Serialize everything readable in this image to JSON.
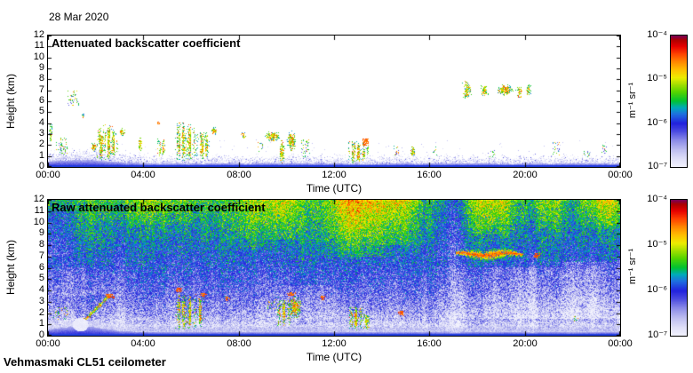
{
  "header": {
    "date": "28 Mar 2020"
  },
  "footer": {
    "station": "Vehmasmaki CL51 ceilometer"
  },
  "colormap": [
    [
      0.0,
      "#f2f2fd"
    ],
    [
      0.06,
      "#dedef8"
    ],
    [
      0.13,
      "#bcbcf0"
    ],
    [
      0.2,
      "#8c8ce8"
    ],
    [
      0.27,
      "#4a4ae0"
    ],
    [
      0.33,
      "#2222dd"
    ],
    [
      0.4,
      "#1e6fe0"
    ],
    [
      0.45,
      "#00aabb"
    ],
    [
      0.5,
      "#00c233"
    ],
    [
      0.57,
      "#55d400"
    ],
    [
      0.63,
      "#a8e000"
    ],
    [
      0.68,
      "#eded00"
    ],
    [
      0.74,
      "#ffc000"
    ],
    [
      0.8,
      "#ff8800"
    ],
    [
      0.86,
      "#ff4400"
    ],
    [
      0.92,
      "#e60000"
    ],
    [
      0.97,
      "#ad0000"
    ],
    [
      1.0,
      "#7a0055"
    ]
  ],
  "chart_data": [
    {
      "type": "heatmap",
      "title": "Attenuated backscatter coefficient",
      "xlabel": "Time (UTC)",
      "ylabel": "Height (km)",
      "x_ticks": [
        "00:00",
        "04:00",
        "08:00",
        "12:00",
        "16:00",
        "20:00",
        "00:00"
      ],
      "y_ticks": [
        "0",
        "1",
        "2",
        "3",
        "4",
        "5",
        "6",
        "7",
        "8",
        "9",
        "10",
        "11",
        "12"
      ],
      "x_range_hours": [
        0,
        24
      ],
      "ylim": [
        0,
        12
      ],
      "background": "#ffffff",
      "colorbar": {
        "label": "m⁻¹ sr⁻¹",
        "tick_labels": [
          "10⁻⁴",
          "10⁻⁵",
          "10⁻⁶",
          "10⁻⁷"
        ],
        "log10_range": [
          -7,
          -4
        ]
      },
      "surface_layer": {
        "base_km": 0.3,
        "bump_km": 0.35,
        "bump_t": 1.2,
        "bump_sigma": 1.8,
        "log_value": -6.05
      },
      "speckle": {
        "depth_km": 0.9,
        "left_extra_km": 0.45,
        "extra_t": 1.6,
        "extra_sigma": 2.6
      },
      "clouds": [
        {
          "t": 0.1,
          "dt": 0.07,
          "h0": 2.3,
          "h1": 4.1,
          "kind": "streak"
        },
        {
          "t": 0.45,
          "dt": 0.1,
          "h0": 1.3,
          "h1": 2.2,
          "kind": "specks"
        },
        {
          "t": 0.65,
          "dt": 0.12,
          "h0": 1.2,
          "h1": 2.7,
          "kind": "specks"
        },
        {
          "t": 1.05,
          "dt": 0.2,
          "h0": 5.7,
          "h1": 6.9,
          "kind": "specks"
        },
        {
          "t": 1.45,
          "dt": 0.07,
          "h0": 4.3,
          "h1": 4.9,
          "kind": "streak"
        },
        {
          "t": 1.9,
          "dt": 0.12,
          "h0": 1.3,
          "h1": 2.4,
          "kind": "bright"
        },
        {
          "t": 2.15,
          "dt": 0.08,
          "h0": 2.3,
          "h1": 3.6,
          "kind": "streak"
        },
        {
          "t": 2.2,
          "dt": 0.15,
          "h0": 0.6,
          "h1": 3.0,
          "kind": "column"
        },
        {
          "t": 2.5,
          "dt": 0.18,
          "h0": 0.6,
          "h1": 4.1,
          "kind": "column"
        },
        {
          "t": 2.75,
          "dt": 0.12,
          "h0": 1.0,
          "h1": 3.5,
          "kind": "column"
        },
        {
          "t": 3.1,
          "dt": 0.12,
          "h0": 2.9,
          "h1": 3.6,
          "kind": "blob"
        },
        {
          "t": 3.85,
          "dt": 0.1,
          "h0": 1.5,
          "h1": 2.7,
          "kind": "streak"
        },
        {
          "t": 4.6,
          "dt": 0.04,
          "h0": 3.9,
          "h1": 4.2,
          "kind": "dash"
        },
        {
          "t": 4.75,
          "dt": 0.15,
          "h0": 1.0,
          "h1": 2.6,
          "kind": "column"
        },
        {
          "t": 5.6,
          "dt": 0.25,
          "h0": 0.5,
          "h1": 4.2,
          "kind": "column"
        },
        {
          "t": 5.95,
          "dt": 0.2,
          "h0": 0.6,
          "h1": 4.0,
          "kind": "column"
        },
        {
          "t": 6.5,
          "dt": 0.25,
          "h0": 0.8,
          "h1": 3.3,
          "kind": "column"
        },
        {
          "t": 6.95,
          "dt": 0.15,
          "h0": 2.9,
          "h1": 3.7,
          "kind": "blob"
        },
        {
          "t": 8.2,
          "dt": 0.12,
          "h0": 2.6,
          "h1": 3.2,
          "kind": "blob"
        },
        {
          "t": 8.9,
          "dt": 0.1,
          "h0": 1.5,
          "h1": 2.2,
          "kind": "specks"
        },
        {
          "t": 9.4,
          "dt": 0.35,
          "h0": 2.4,
          "h1": 3.3,
          "kind": "blob"
        },
        {
          "t": 9.8,
          "dt": 0.12,
          "h0": 0.3,
          "h1": 2.5,
          "kind": "streak"
        },
        {
          "t": 10.2,
          "dt": 0.2,
          "h0": 1.5,
          "h1": 3.4,
          "kind": "bright"
        },
        {
          "t": 10.8,
          "dt": 0.15,
          "h0": 1.0,
          "h1": 2.5,
          "kind": "specks"
        },
        {
          "t": 13.0,
          "dt": 0.4,
          "h0": 0.4,
          "h1": 2.4,
          "kind": "column"
        },
        {
          "t": 13.3,
          "dt": 0.1,
          "h0": 2.0,
          "h1": 2.6,
          "kind": "dash"
        },
        {
          "t": 14.6,
          "dt": 0.1,
          "h0": 1.0,
          "h1": 2.0,
          "kind": "specks"
        },
        {
          "t": 15.3,
          "dt": 0.12,
          "h0": 0.9,
          "h1": 1.9,
          "kind": "streak"
        },
        {
          "t": 16.2,
          "dt": 0.08,
          "h0": 1.2,
          "h1": 1.8,
          "kind": "specks"
        },
        {
          "t": 17.55,
          "dt": 0.2,
          "h0": 6.3,
          "h1": 7.9,
          "kind": "streak"
        },
        {
          "t": 18.3,
          "dt": 0.17,
          "h0": 6.5,
          "h1": 7.5,
          "kind": "streak"
        },
        {
          "t": 18.6,
          "dt": 0.1,
          "h0": 1.0,
          "h1": 1.6,
          "kind": "specks"
        },
        {
          "t": 19.15,
          "dt": 0.35,
          "h0": 6.5,
          "h1": 7.6,
          "kind": "bright"
        },
        {
          "t": 19.75,
          "dt": 0.15,
          "h0": 6.4,
          "h1": 7.4,
          "kind": "streak"
        },
        {
          "t": 20.15,
          "dt": 0.12,
          "h0": 6.6,
          "h1": 7.6,
          "kind": "streak"
        },
        {
          "t": 21.3,
          "dt": 0.1,
          "h0": 1.2,
          "h1": 2.2,
          "kind": "specks"
        },
        {
          "t": 22.6,
          "dt": 0.1,
          "h0": 0.9,
          "h1": 1.5,
          "kind": "specks"
        },
        {
          "t": 23.3,
          "dt": 0.08,
          "h0": 1.0,
          "h1": 2.0,
          "kind": "specks"
        }
      ]
    },
    {
      "type": "heatmap",
      "title": "Raw attenuated backscatter coefficient",
      "xlabel": "Time (UTC)",
      "ylabel": "Height (km)",
      "x_ticks": [
        "00:00",
        "04:00",
        "08:00",
        "12:00",
        "16:00",
        "20:00",
        "00:00"
      ],
      "y_ticks": [
        "0",
        "1",
        "2",
        "3",
        "4",
        "5",
        "6",
        "7",
        "8",
        "9",
        "10",
        "11",
        "12"
      ],
      "x_range_hours": [
        0,
        24
      ],
      "ylim": [
        0,
        12
      ],
      "colorbar": {
        "label": "m⁻¹ sr⁻¹",
        "tick_labels": [
          "10⁻⁴",
          "10⁻⁵",
          "10⁻⁶",
          "10⁻⁷"
        ],
        "log10_range": [
          -7,
          -4
        ]
      },
      "noise_profile": [
        [
          0.0,
          -6.0
        ],
        [
          0.9,
          -6.8
        ],
        [
          1.6,
          -6.62
        ],
        [
          2.5,
          -6.45
        ],
        [
          4.0,
          -6.25
        ],
        [
          6.0,
          -6.05
        ],
        [
          9.0,
          -5.75
        ],
        [
          12.0,
          -5.55
        ]
      ],
      "noise_amp": 0.62,
      "column_streak_amp": 0.25,
      "surface_layer": {
        "base_km": 0.3,
        "bump_km": 0.5,
        "bump_t": 1.3,
        "bump_sigma": 1.5,
        "log_value": -6.0
      },
      "hot_patches": [
        {
          "t": 0.3,
          "st": 0.7,
          "h0": 7.0,
          "h1": 11.0,
          "amp": -0.25
        },
        {
          "t": 1.5,
          "st": 1.2,
          "h0": 3.5,
          "h1": 6.0,
          "amp": -0.2
        },
        {
          "t": 4.5,
          "st": 2.0,
          "h0": 9.8,
          "h1": 12.0,
          "amp": 0.35
        },
        {
          "t": 8.8,
          "st": 1.0,
          "h0": 7.5,
          "h1": 12.0,
          "amp": 0.5
        },
        {
          "t": 10.0,
          "st": 0.6,
          "h0": 8.5,
          "h1": 12.0,
          "amp": 0.45
        },
        {
          "t": 11.0,
          "st": 1.5,
          "h0": 1.5,
          "h1": 4.5,
          "amp": -0.15
        },
        {
          "t": 13.0,
          "st": 1.3,
          "h0": 7.0,
          "h1": 12.0,
          "amp": 0.85
        },
        {
          "t": 14.8,
          "st": 0.8,
          "h0": 8.0,
          "h1": 12.0,
          "amp": 0.5
        },
        {
          "t": 16.8,
          "st": 0.8,
          "h0": 7.0,
          "h1": 12.0,
          "amp": -0.2
        },
        {
          "t": 18.6,
          "st": 0.9,
          "h0": 9.0,
          "h1": 12.0,
          "amp": 0.55
        },
        {
          "t": 19.5,
          "st": 2.5,
          "h0": 1.5,
          "h1": 6.0,
          "amp": -0.3
        },
        {
          "t": 21.0,
          "st": 0.7,
          "h0": 9.5,
          "h1": 12.0,
          "amp": 0.3
        },
        {
          "t": 23.0,
          "st": 1.5,
          "h0": 1.5,
          "h1": 6.5,
          "amp": -0.3
        },
        {
          "t": 23.4,
          "st": 0.9,
          "h0": 9.5,
          "h1": 12.0,
          "amp": 0.6
        }
      ],
      "white_hole": {
        "t": 1.35,
        "h": 1.0,
        "rt": 0.33,
        "rh": 0.6
      },
      "cirrus": {
        "t0": 17.1,
        "t1": 19.9,
        "h0": 6.7,
        "h1": 7.7
      },
      "clouds": [
        {
          "t": 0.5,
          "dt": 0.3,
          "h0": 1.5,
          "h1": 2.5,
          "kind": "specks"
        },
        {
          "t": 2.0,
          "dt": 0.5,
          "h0": 1.4,
          "h1": 3.5,
          "kind": "arc"
        },
        {
          "t": 2.6,
          "dt": 0.15,
          "h0": 3.3,
          "h1": 3.7,
          "kind": "dash"
        },
        {
          "t": 5.5,
          "dt": 0.12,
          "h0": 3.9,
          "h1": 4.3,
          "kind": "dash"
        },
        {
          "t": 5.6,
          "dt": 0.25,
          "h0": 0.6,
          "h1": 3.7,
          "kind": "column"
        },
        {
          "t": 5.95,
          "dt": 0.2,
          "h0": 0.7,
          "h1": 3.8,
          "kind": "column"
        },
        {
          "t": 6.35,
          "dt": 0.15,
          "h0": 0.8,
          "h1": 3.5,
          "kind": "column"
        },
        {
          "t": 6.5,
          "dt": 0.1,
          "h0": 3.5,
          "h1": 3.8,
          "kind": "dash"
        },
        {
          "t": 7.5,
          "dt": 0.08,
          "h0": 3.1,
          "h1": 3.5,
          "kind": "dash"
        },
        {
          "t": 9.4,
          "dt": 0.2,
          "h0": 2.5,
          "h1": 3.2,
          "kind": "specks"
        },
        {
          "t": 9.9,
          "dt": 0.3,
          "h0": 0.8,
          "h1": 3.5,
          "kind": "column"
        },
        {
          "t": 10.2,
          "dt": 0.15,
          "h0": 3.6,
          "h1": 3.9,
          "kind": "dash"
        },
        {
          "t": 10.35,
          "dt": 0.3,
          "h0": 1.5,
          "h1": 3.6,
          "kind": "bright"
        },
        {
          "t": 11.5,
          "dt": 0.08,
          "h0": 3.2,
          "h1": 3.6,
          "kind": "dash"
        },
        {
          "t": 12.9,
          "dt": 0.3,
          "h0": 0.5,
          "h1": 2.6,
          "kind": "column"
        },
        {
          "t": 13.35,
          "dt": 0.15,
          "h0": 0.6,
          "h1": 2.0,
          "kind": "streak"
        },
        {
          "t": 14.8,
          "dt": 0.08,
          "h0": 1.8,
          "h1": 2.2,
          "kind": "dash"
        },
        {
          "t": 20.5,
          "dt": 0.08,
          "h0": 6.9,
          "h1": 7.3,
          "kind": "dash"
        },
        {
          "t": 22.1,
          "dt": 0.1,
          "h0": 1.3,
          "h1": 1.7,
          "kind": "specks"
        }
      ]
    }
  ]
}
